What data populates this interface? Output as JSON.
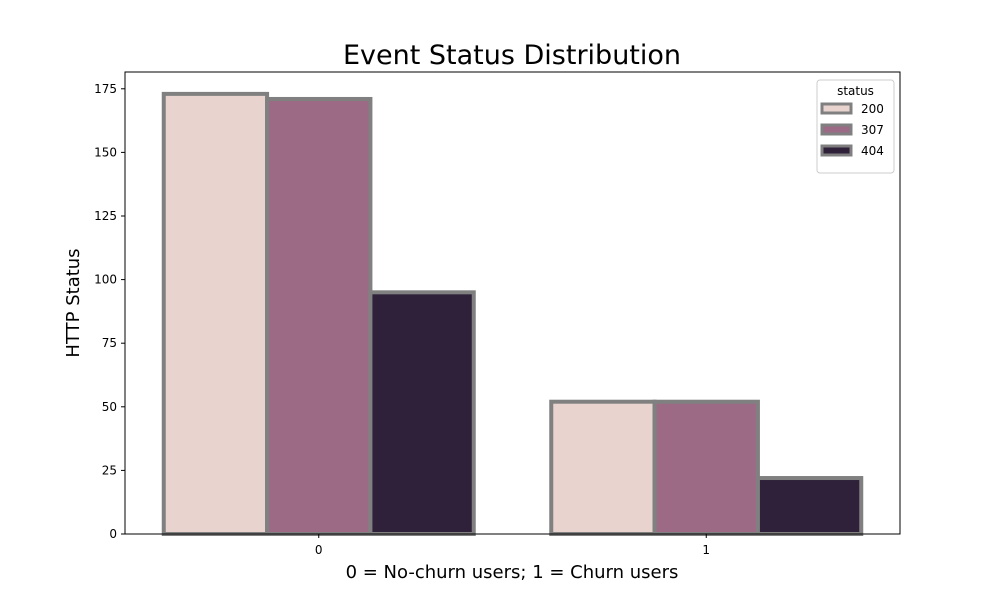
{
  "chart_data": {
    "type": "bar",
    "title": "Event Status Distribution",
    "xlabel": "0 = No-churn users; 1 = Churn users",
    "ylabel": "HTTP Status",
    "categories": [
      "0",
      "1"
    ],
    "series": [
      {
        "name": "200",
        "values": [
          173,
          52
        ],
        "color": "#e9d3cf"
      },
      {
        "name": "307",
        "values": [
          171,
          52
        ],
        "color": "#9d6a86"
      },
      {
        "name": "404",
        "values": [
          95,
          22
        ],
        "color": "#2e2139"
      }
    ],
    "ylim": [
      0,
      181.6
    ],
    "yticks": [
      0,
      25,
      50,
      75,
      100,
      125,
      150,
      175
    ],
    "grid": false,
    "legend": {
      "title": "status",
      "placement": "top-right"
    },
    "bar_edge_color": "#808080"
  }
}
